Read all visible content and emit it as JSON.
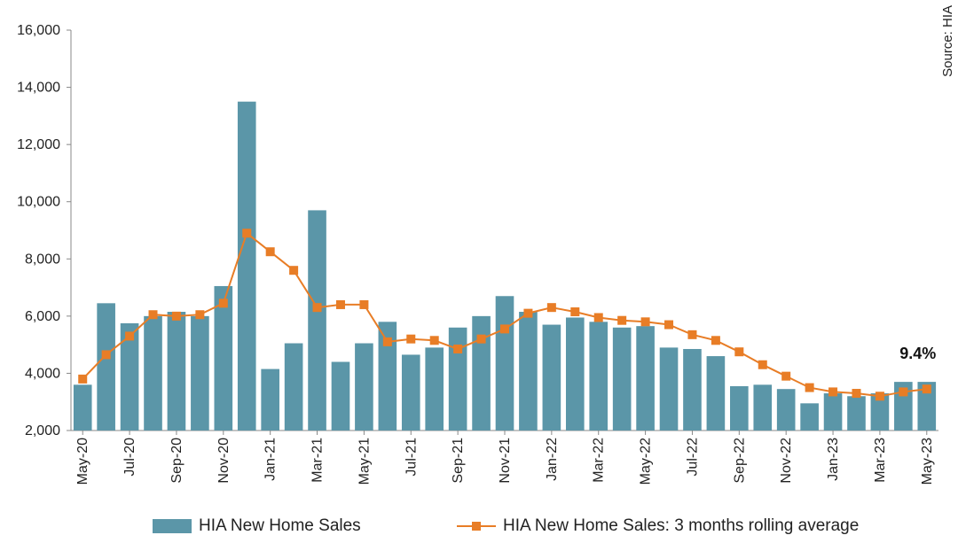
{
  "chart_data": {
    "type": "bar",
    "categories": [
      "May-20",
      "Jun-20",
      "Jul-20",
      "Aug-20",
      "Sep-20",
      "Oct-20",
      "Nov-20",
      "Dec-20",
      "Jan-21",
      "Feb-21",
      "Mar-21",
      "Apr-21",
      "May-21",
      "Jun-21",
      "Jul-21",
      "Aug-21",
      "Sep-21",
      "Oct-21",
      "Nov-21",
      "Dec-21",
      "Jan-22",
      "Feb-22",
      "Mar-22",
      "Apr-22",
      "May-22",
      "Jun-22",
      "Jul-22",
      "Aug-22",
      "Sep-22",
      "Oct-22",
      "Nov-22",
      "Dec-22",
      "Jan-23",
      "Feb-23",
      "Mar-23",
      "Apr-23",
      "May-23"
    ],
    "tick_labels": [
      "May-20",
      "Jul-20",
      "Sep-20",
      "Nov-20",
      "Jan-21",
      "Mar-21",
      "May-21",
      "Jul-21",
      "Sep-21",
      "Nov-21",
      "Jan-22",
      "Mar-22",
      "May-22",
      "Jul-22",
      "Sep-22",
      "Nov-22",
      "Jan-23",
      "Mar-23",
      "May-23"
    ],
    "series": [
      {
        "name": "HIA New Home Sales",
        "type": "bar",
        "color": "#5b96a8",
        "values": [
          3600,
          6450,
          5750,
          6000,
          6150,
          6000,
          7050,
          13500,
          4150,
          5050,
          9700,
          4400,
          5050,
          5800,
          4650,
          4900,
          5600,
          6000,
          6700,
          6150,
          5700,
          5950,
          5800,
          5600,
          5650,
          4900,
          4850,
          4600,
          3550,
          3600,
          3450,
          2950,
          3300,
          3200,
          3300,
          3700,
          3700
        ]
      },
      {
        "name": "HIA New Home Sales: 3 months rolling average",
        "type": "line",
        "color": "#e87d26",
        "values": [
          3800,
          4650,
          5300,
          6050,
          6000,
          6050,
          6450,
          8900,
          8250,
          7600,
          6300,
          6400,
          6400,
          5100,
          5200,
          5150,
          4850,
          5200,
          5550,
          6100,
          6300,
          6150,
          5950,
          5850,
          5800,
          5700,
          5350,
          5150,
          4750,
          4300,
          3900,
          3500,
          3350,
          3300,
          3200,
          3350,
          3450
        ]
      }
    ],
    "ylim": [
      2000,
      16000
    ],
    "yticks": [
      2000,
      4000,
      6000,
      8000,
      10000,
      12000,
      14000,
      16000
    ],
    "ytick_labels": [
      "2,000",
      "4,000",
      "6,000",
      "8,000",
      "10,000",
      "12,000",
      "14,000",
      "16,000"
    ],
    "grid": "horizontal-none",
    "legend": "bottom",
    "annotation": "9.4%",
    "source": "Source: HIA",
    "title": "",
    "xlabel": "",
    "ylabel": ""
  }
}
